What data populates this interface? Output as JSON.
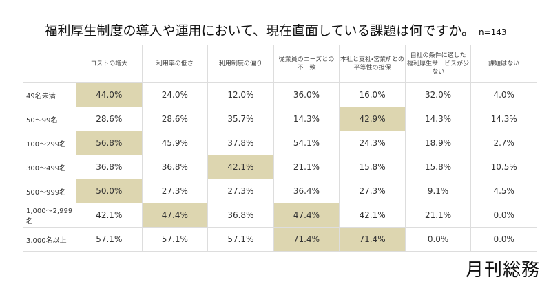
{
  "header": {
    "title": "福利厚生制度の導入や運用において、現在直面している課題は何ですか。",
    "sample": "n=143"
  },
  "table": {
    "columns": [
      "コストの増大",
      "利用率の低さ",
      "利用制度の偏り",
      "従業員のニーズとの\n不一致",
      "本社と支社・営業所との\n平等性の担保",
      "自社の条件に適した\n福利厚生サービスが少ない",
      "課題はない"
    ],
    "rows": [
      {
        "label": "49名未満",
        "cells": [
          "44.0%",
          "24.0%",
          "12.0%",
          "36.0%",
          "16.0%",
          "32.0%",
          "4.0%"
        ],
        "highlight": [
          0
        ]
      },
      {
        "label": "50〜99名",
        "cells": [
          "28.6%",
          "28.6%",
          "35.7%",
          "14.3%",
          "42.9%",
          "14.3%",
          "14.3%"
        ],
        "highlight": [
          4
        ]
      },
      {
        "label": "100〜299名",
        "cells": [
          "56.8%",
          "45.9%",
          "37.8%",
          "54.1%",
          "24.3%",
          "18.9%",
          "2.7%"
        ],
        "highlight": [
          0
        ]
      },
      {
        "label": "300〜499名",
        "cells": [
          "36.8%",
          "36.8%",
          "42.1%",
          "21.1%",
          "15.8%",
          "15.8%",
          "10.5%"
        ],
        "highlight": [
          2
        ]
      },
      {
        "label": "500〜999名",
        "cells": [
          "50.0%",
          "27.3%",
          "27.3%",
          "36.4%",
          "27.3%",
          "9.1%",
          "4.5%"
        ],
        "highlight": [
          0
        ]
      },
      {
        "label": "1,000〜2,999名",
        "cells": [
          "42.1%",
          "47.4%",
          "36.8%",
          "47.4%",
          "42.1%",
          "21.1%",
          "0.0%"
        ],
        "highlight": [
          1,
          3
        ]
      },
      {
        "label": "3,000名以上",
        "cells": [
          "57.1%",
          "57.1%",
          "57.1%",
          "71.4%",
          "71.4%",
          "0.0%",
          "0.0%"
        ],
        "highlight": [
          3,
          4
        ]
      }
    ],
    "highlight_color": "#ddd6b0"
  },
  "footer": {
    "logo": "月刊総務"
  }
}
